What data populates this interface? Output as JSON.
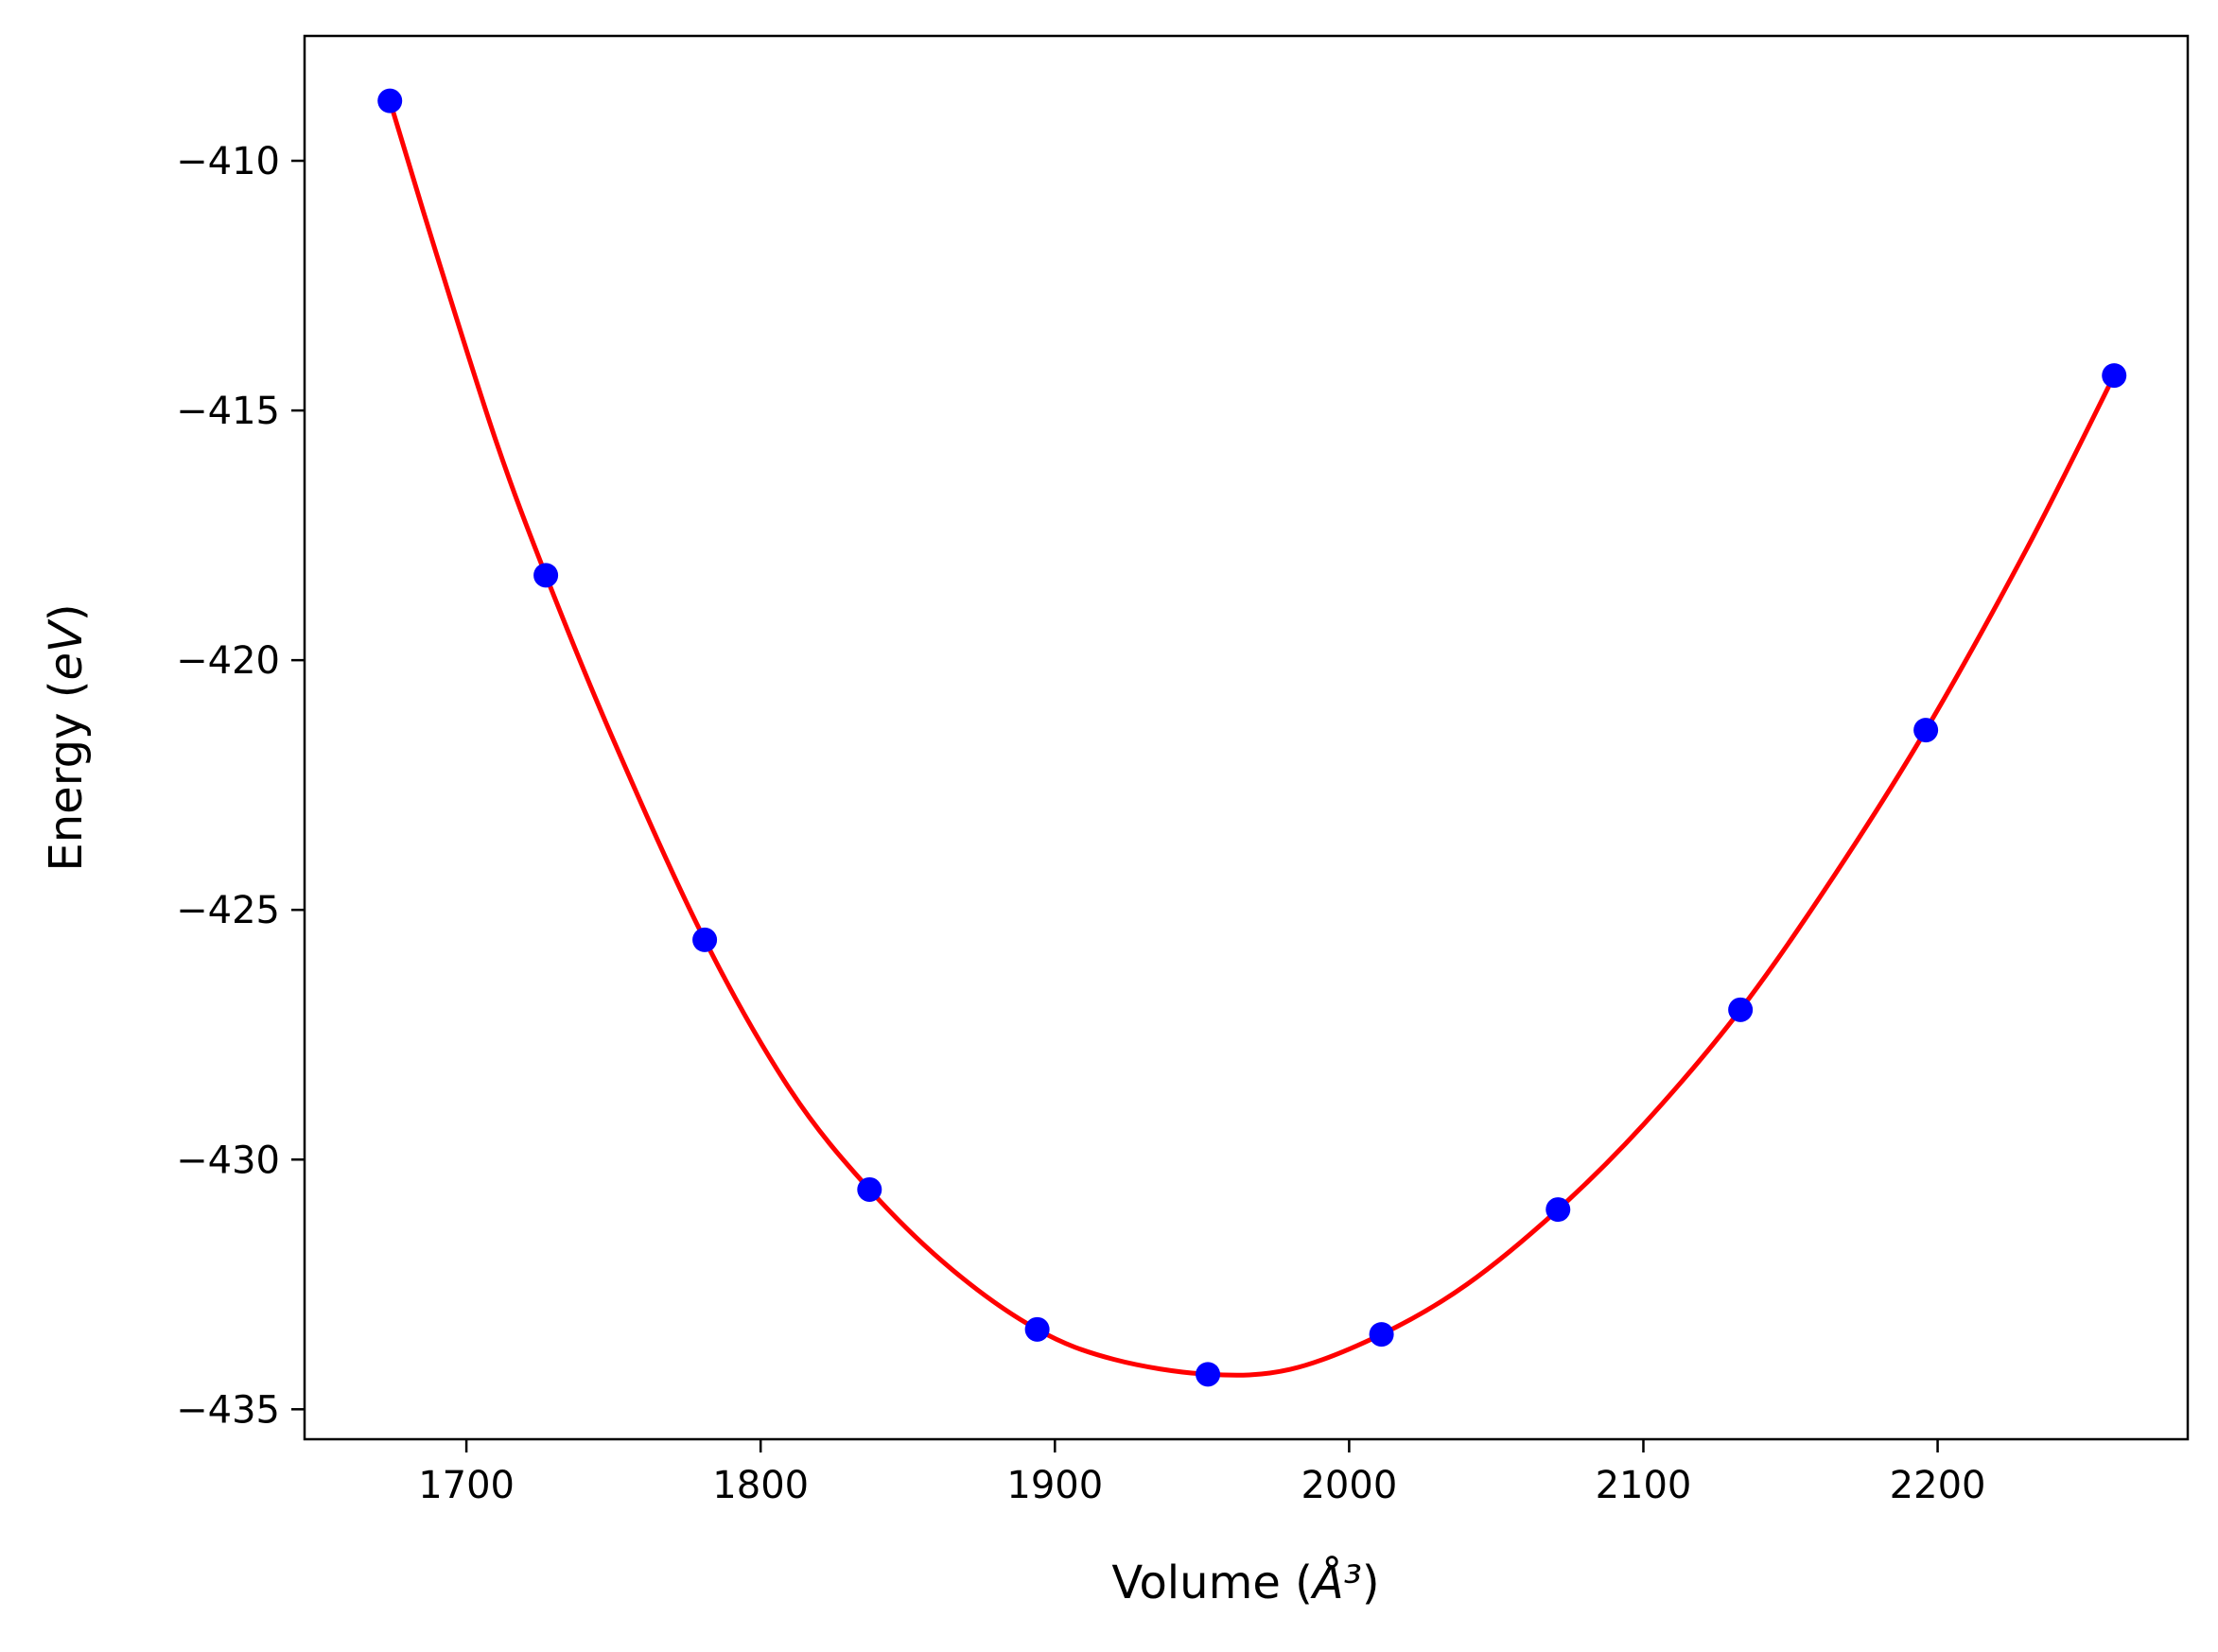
{
  "chart_data": {
    "type": "line",
    "title": "",
    "xlabel": "Volume (Å³)",
    "ylabel": "Energy (eV)",
    "xlim": [
      1645,
      2285
    ],
    "ylim": [
      -435.6,
      -407.5
    ],
    "grid": false,
    "legend": "none",
    "xticks": [
      1700,
      1800,
      1900,
      2000,
      2100,
      2200
    ],
    "xtick_labels": [
      "1700",
      "1800",
      "1900",
      "2000",
      "2100",
      "2200"
    ],
    "yticks": [
      -410,
      -415,
      -420,
      -425,
      -430,
      -435
    ],
    "ytick_labels": [
      "−410",
      "−415",
      "−420",
      "−425",
      "−430",
      "−435"
    ],
    "series": [
      {
        "kind": "scatter",
        "color": "#0000ff",
        "x": [
          1674,
          1727,
          1781,
          1837,
          1894,
          1952,
          2011,
          2071,
          2133,
          2196,
          2260
        ],
        "y": [
          -408.8,
          -418.3,
          -425.6,
          -430.6,
          -433.4,
          -434.3,
          -433.5,
          -431.0,
          -427.0,
          -421.4,
          -414.3
        ]
      },
      {
        "kind": "fit_curve",
        "color": "#ff0000",
        "x": [
          1674,
          1690,
          1710,
          1727,
          1750,
          1781,
          1810,
          1837,
          1865,
          1894,
          1920,
          1952,
          1980,
          2011,
          2040,
          2071,
          2100,
          2133,
          2165,
          2196,
          2230,
          2260
        ],
        "y": [
          -408.8,
          -411.9,
          -415.6,
          -418.3,
          -421.6,
          -425.6,
          -428.6,
          -430.6,
          -432.2,
          -433.4,
          -434.0,
          -434.3,
          -434.2,
          -433.5,
          -432.5,
          -431.0,
          -429.3,
          -427.0,
          -424.3,
          -421.4,
          -417.8,
          -414.3
        ]
      }
    ]
  }
}
